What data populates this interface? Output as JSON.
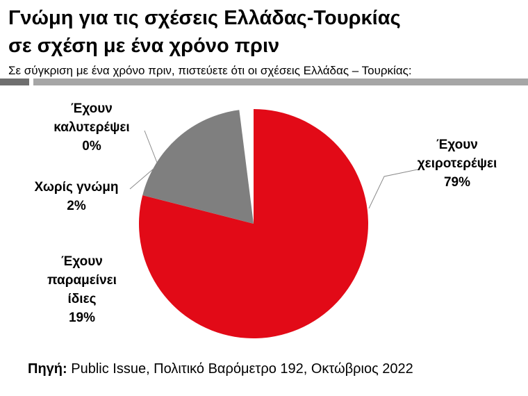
{
  "title_line1": "Γνώμη για τις σχέσεις Ελλάδας-Τουρκίας",
  "title_line2": "σε σχέση με ένα χρόνο πριν",
  "subtitle": "Σε σύγκριση με ένα χρόνο πριν, πιστεύετε ότι οι σχέσεις Ελλάδας – Τουρκίας:",
  "source_label": "Πηγή:",
  "source_text": "Public Issue, Πολιτικό Βαρόμετρο 192, Οκτώβριος 2022",
  "chart_data": {
    "type": "pie",
    "start": "12 o'clock, clockwise",
    "series": [
      {
        "name": "Έχουν χειροτερέψει",
        "value": 79,
        "label_lines": [
          "Έχουν",
          "χειροτερέψει",
          "79%"
        ],
        "color": "#e20a17",
        "exploded": false
      },
      {
        "name": "Έχουν παραμείνει ίδιες",
        "value": 19,
        "label_lines": [
          "Έχουν",
          "παραμείνει",
          "ίδιες",
          "19%"
        ],
        "color": "#7f7f7f",
        "exploded": false
      },
      {
        "name": "Χωρίς γνώμη",
        "value": 2,
        "label_lines": [
          "Χωρίς γνώμη",
          "2%"
        ],
        "color": "#ffffff",
        "exploded": true
      },
      {
        "name": "Έχουν καλυτερέψει",
        "value": 0,
        "label_lines": [
          "Έχουν",
          "καλυτερέψει",
          "0%"
        ],
        "color": "#e20a17",
        "exploded": false
      }
    ]
  }
}
